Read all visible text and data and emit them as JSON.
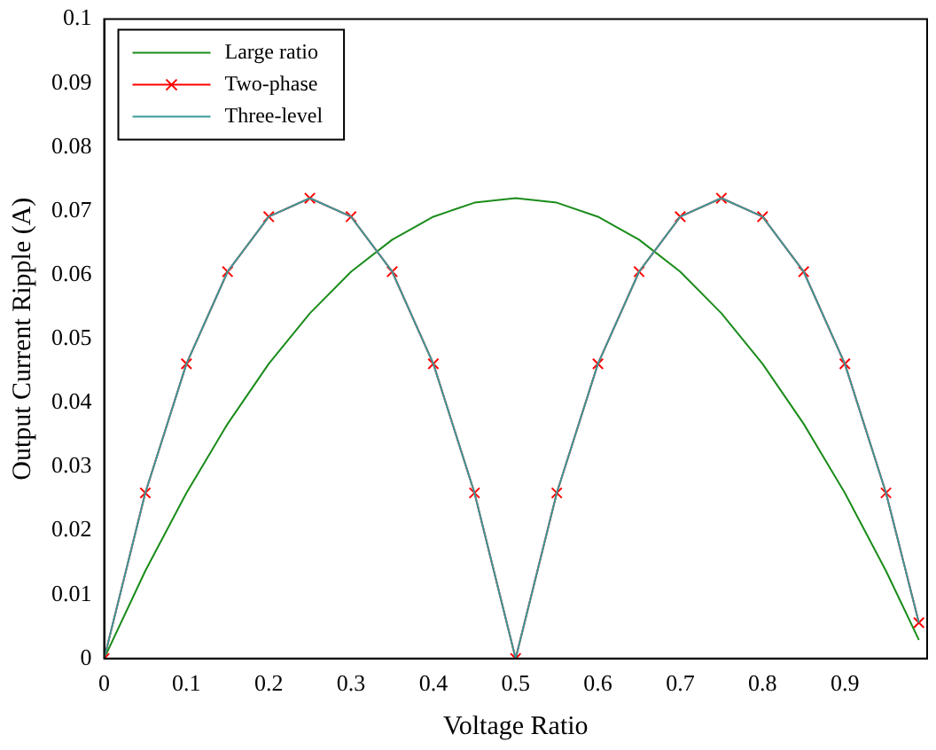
{
  "chart_data": {
    "type": "line",
    "xlabel": "Voltage Ratio",
    "ylabel": "Output Current Ripple (A)",
    "xlim": [
      0,
      1
    ],
    "xticks": [
      0,
      0.1,
      0.2,
      0.3,
      0.4,
      0.5,
      0.6,
      0.7,
      0.8,
      0.9
    ],
    "ylim": [
      0,
      0.1
    ],
    "yticks": [
      0,
      0.01,
      0.02,
      0.03,
      0.04,
      0.05,
      0.06,
      0.07,
      0.08,
      0.09,
      0.1
    ],
    "x": [
      0,
      0.05,
      0.1,
      0.15,
      0.2,
      0.25,
      0.3,
      0.35,
      0.4,
      0.45,
      0.5,
      0.55,
      0.6,
      0.65,
      0.7,
      0.75,
      0.8,
      0.85,
      0.9,
      0.95,
      0.99
    ],
    "grid": false,
    "legend": "top left",
    "line_style": "solid",
    "series": [
      {
        "name": "Large ratio",
        "color": "#1a8c1a",
        "marker": "none",
        "values": [
          0,
          0.0137,
          0.0259,
          0.0367,
          0.0461,
          0.054,
          0.0605,
          0.0655,
          0.0691,
          0.0713,
          0.072,
          0.0713,
          0.0691,
          0.0655,
          0.0605,
          0.054,
          0.0461,
          0.0367,
          0.0259,
          0.0137,
          0.0029
        ]
      },
      {
        "name": "Two-phase",
        "color": "#ff0000",
        "marker": "cross",
        "values": [
          0,
          0.0259,
          0.0461,
          0.0605,
          0.0691,
          0.072,
          0.0691,
          0.0605,
          0.0461,
          0.0259,
          0,
          0.0259,
          0.0461,
          0.0605,
          0.0691,
          0.072,
          0.0691,
          0.0605,
          0.0461,
          0.0259,
          0.0056
        ]
      },
      {
        "name": "Three-level",
        "color": "#3a9a9a",
        "marker": "none",
        "values": [
          0,
          0.0259,
          0.0461,
          0.0605,
          0.0691,
          0.072,
          0.0691,
          0.0605,
          0.0461,
          0.0259,
          0,
          0.0259,
          0.0461,
          0.0605,
          0.0691,
          0.072,
          0.0691,
          0.0605,
          0.0461,
          0.0259,
          0.0056
        ]
      }
    ]
  }
}
